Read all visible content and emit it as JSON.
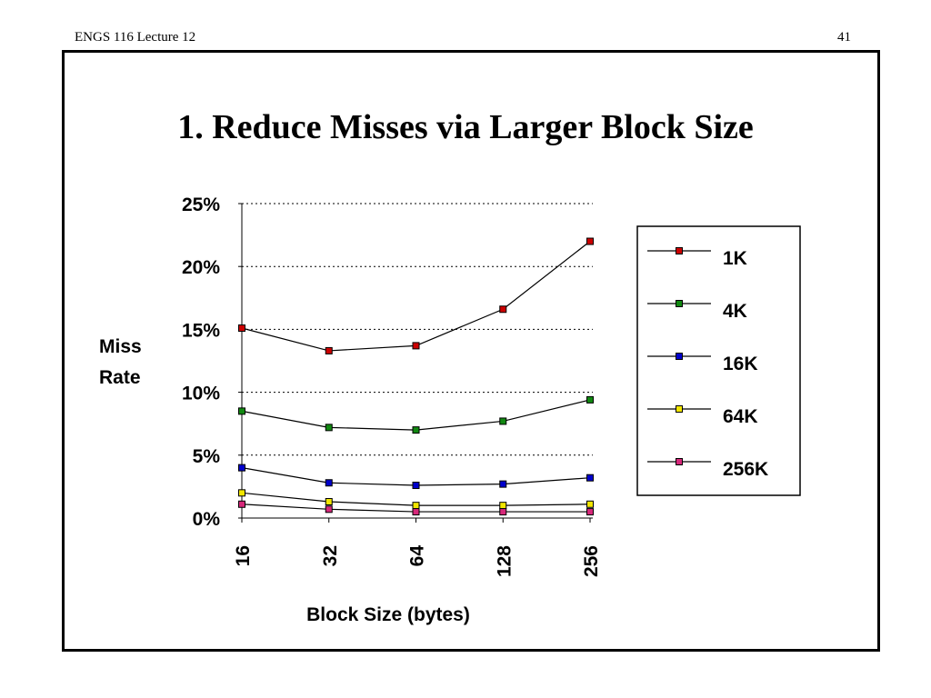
{
  "header": {
    "course": "ENGS 116  Lecture 12",
    "page": "41"
  },
  "slide_title": "1.  Reduce Misses via Larger Block Size",
  "chart_data": {
    "type": "line",
    "xlabel": "Block Size (bytes)",
    "ylabel_lines": [
      "Miss",
      "Rate"
    ],
    "categories": [
      "16",
      "32",
      "64",
      "128",
      "256"
    ],
    "y_ticks": [
      "0%",
      "5%",
      "10%",
      "15%",
      "20%",
      "25%"
    ],
    "ylim": [
      0,
      25
    ],
    "grid": "horizontal-dotted",
    "legend_placement": "right",
    "series": [
      {
        "name": "1K",
        "color": "#cc0000",
        "values": [
          15.1,
          13.3,
          13.7,
          16.6,
          22.0
        ]
      },
      {
        "name": "4K",
        "color": "#118811",
        "values": [
          8.5,
          7.2,
          7.0,
          7.7,
          9.4
        ]
      },
      {
        "name": "16K",
        "color": "#0000cc",
        "values": [
          4.0,
          2.8,
          2.6,
          2.7,
          3.2
        ]
      },
      {
        "name": "64K",
        "color": "#f2e600",
        "values": [
          2.0,
          1.3,
          1.0,
          1.0,
          1.1
        ]
      },
      {
        "name": "256K",
        "color": "#d6287a",
        "values": [
          1.1,
          0.7,
          0.5,
          0.5,
          0.5
        ]
      }
    ]
  }
}
